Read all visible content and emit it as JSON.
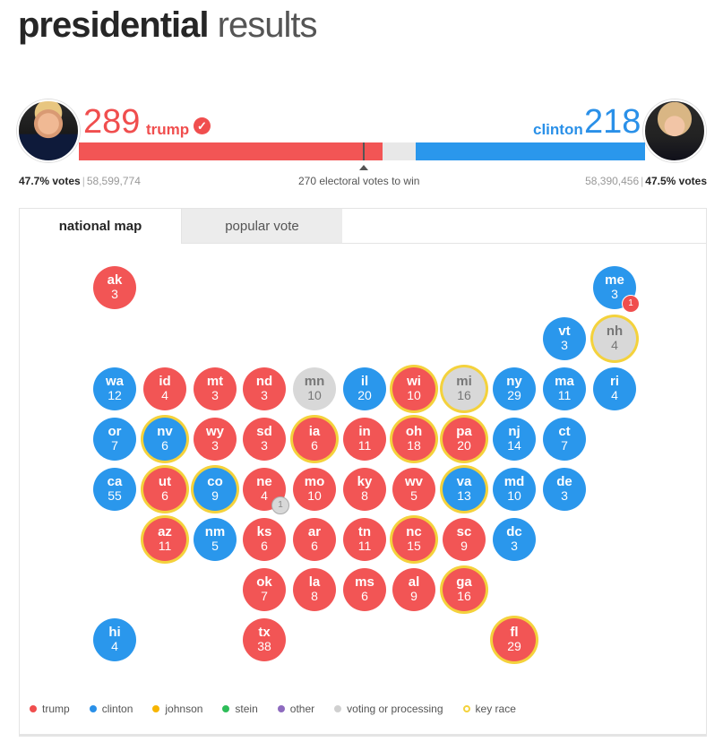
{
  "header": {
    "title_bold": "presidential",
    "title_light": "results"
  },
  "candidates": {
    "trump": {
      "name": "trump",
      "electoral": "289",
      "pct_label": "47.7% votes",
      "popular": "58,599,774",
      "color": "#f25555",
      "winner": true
    },
    "clinton": {
      "name": "clinton",
      "electoral": "218",
      "pct_label": "47.5% votes",
      "popular": "58,390,456",
      "color": "#2a97ec"
    }
  },
  "win_threshold": "270 electoral votes to win",
  "tabs": {
    "national_map": "national map",
    "popular_vote": "popular vote"
  },
  "states": [
    {
      "id": "ak",
      "ev": "3",
      "status": "trump",
      "key": false
    },
    {
      "id": "me",
      "ev": "3",
      "status": "clinton",
      "key": false,
      "badge": "1",
      "badge_status": "trump"
    },
    {
      "id": "vt",
      "ev": "3",
      "status": "clinton",
      "key": false
    },
    {
      "id": "nh",
      "ev": "4",
      "status": "pending",
      "key": true
    },
    {
      "id": "wa",
      "ev": "12",
      "status": "clinton",
      "key": false
    },
    {
      "id": "id",
      "ev": "4",
      "status": "trump",
      "key": false
    },
    {
      "id": "mt",
      "ev": "3",
      "status": "trump",
      "key": false
    },
    {
      "id": "nd",
      "ev": "3",
      "status": "trump",
      "key": false
    },
    {
      "id": "mn",
      "ev": "10",
      "status": "pending",
      "key": false
    },
    {
      "id": "il",
      "ev": "20",
      "status": "clinton",
      "key": false
    },
    {
      "id": "wi",
      "ev": "10",
      "status": "trump",
      "key": true
    },
    {
      "id": "mi",
      "ev": "16",
      "status": "pending",
      "key": true
    },
    {
      "id": "ny",
      "ev": "29",
      "status": "clinton",
      "key": false
    },
    {
      "id": "ma",
      "ev": "11",
      "status": "clinton",
      "key": false
    },
    {
      "id": "ri",
      "ev": "4",
      "status": "clinton",
      "key": false
    },
    {
      "id": "or",
      "ev": "7",
      "status": "clinton",
      "key": false
    },
    {
      "id": "nv",
      "ev": "6",
      "status": "clinton",
      "key": true
    },
    {
      "id": "wy",
      "ev": "3",
      "status": "trump",
      "key": false
    },
    {
      "id": "sd",
      "ev": "3",
      "status": "trump",
      "key": false
    },
    {
      "id": "ia",
      "ev": "6",
      "status": "trump",
      "key": true
    },
    {
      "id": "in",
      "ev": "11",
      "status": "trump",
      "key": false
    },
    {
      "id": "oh",
      "ev": "18",
      "status": "trump",
      "key": true
    },
    {
      "id": "pa",
      "ev": "20",
      "status": "trump",
      "key": true
    },
    {
      "id": "nj",
      "ev": "14",
      "status": "clinton",
      "key": false
    },
    {
      "id": "ct",
      "ev": "7",
      "status": "clinton",
      "key": false
    },
    {
      "id": "ca",
      "ev": "55",
      "status": "clinton",
      "key": false
    },
    {
      "id": "ut",
      "ev": "6",
      "status": "trump",
      "key": true
    },
    {
      "id": "co",
      "ev": "9",
      "status": "clinton",
      "key": true
    },
    {
      "id": "ne",
      "ev": "4",
      "status": "trump",
      "key": false,
      "badge": "1",
      "badge_status": "pending"
    },
    {
      "id": "mo",
      "ev": "10",
      "status": "trump",
      "key": false
    },
    {
      "id": "ky",
      "ev": "8",
      "status": "trump",
      "key": false
    },
    {
      "id": "wv",
      "ev": "5",
      "status": "trump",
      "key": false
    },
    {
      "id": "va",
      "ev": "13",
      "status": "clinton",
      "key": true
    },
    {
      "id": "md",
      "ev": "10",
      "status": "clinton",
      "key": false
    },
    {
      "id": "de",
      "ev": "3",
      "status": "clinton",
      "key": false
    },
    {
      "id": "az",
      "ev": "11",
      "status": "trump",
      "key": true
    },
    {
      "id": "nm",
      "ev": "5",
      "status": "clinton",
      "key": false
    },
    {
      "id": "ks",
      "ev": "6",
      "status": "trump",
      "key": false
    },
    {
      "id": "ar",
      "ev": "6",
      "status": "trump",
      "key": false
    },
    {
      "id": "tn",
      "ev": "11",
      "status": "trump",
      "key": false
    },
    {
      "id": "nc",
      "ev": "15",
      "status": "trump",
      "key": true
    },
    {
      "id": "sc",
      "ev": "9",
      "status": "trump",
      "key": false
    },
    {
      "id": "dc",
      "ev": "3",
      "status": "clinton",
      "key": false
    },
    {
      "id": "ok",
      "ev": "7",
      "status": "trump",
      "key": false
    },
    {
      "id": "la",
      "ev": "8",
      "status": "trump",
      "key": false
    },
    {
      "id": "ms",
      "ev": "6",
      "status": "trump",
      "key": false
    },
    {
      "id": "al",
      "ev": "9",
      "status": "trump",
      "key": false
    },
    {
      "id": "ga",
      "ev": "16",
      "status": "trump",
      "key": true
    },
    {
      "id": "hi",
      "ev": "4",
      "status": "clinton",
      "key": false
    },
    {
      "id": "tx",
      "ev": "38",
      "status": "trump",
      "key": false
    },
    {
      "id": "fl",
      "ev": "29",
      "status": "trump",
      "key": true
    }
  ],
  "legend": [
    {
      "label": "trump",
      "color": "#f04e4e"
    },
    {
      "label": "clinton",
      "color": "#2a90e8"
    },
    {
      "label": "johnson",
      "color": "#f7b500"
    },
    {
      "label": "stein",
      "color": "#2ebd59"
    },
    {
      "label": "other",
      "color": "#8e6bbf"
    },
    {
      "label": "voting or processing",
      "color": "#d0d0d0"
    },
    {
      "label": "key race",
      "color": "#f4d23c",
      "ring": true
    }
  ]
}
